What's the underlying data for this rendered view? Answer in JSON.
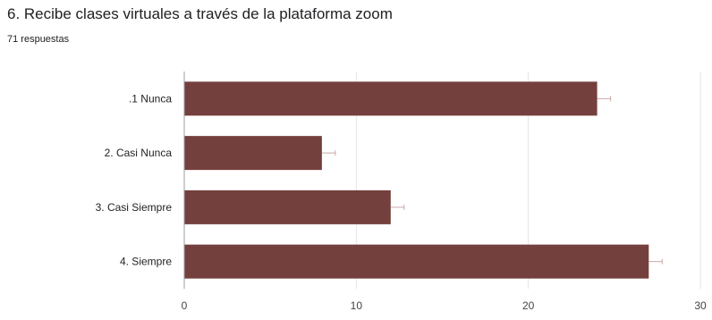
{
  "question": {
    "title": "6. Recibe clases virtuales a través de la plataforma zoom",
    "responses": "71 respuestas"
  },
  "colors": {
    "bar": "#74403d",
    "grid": "#e6e6e6",
    "axis": "#9e9e9e",
    "errorbar": "#c9a9a6"
  },
  "chart_data": {
    "type": "bar",
    "orientation": "horizontal",
    "title": "6. Recibe clases virtuales a través de la plataforma zoom",
    "subtitle": "71 respuestas",
    "categories": [
      ".1 Nunca",
      "2. Casi Nunca",
      "3. Casi Siempre",
      "4. Siempre"
    ],
    "values": [
      24,
      8,
      12,
      27
    ],
    "xlim": [
      0,
      30
    ],
    "xticks": [
      0,
      10,
      20,
      30
    ],
    "grid": true,
    "legend": "none"
  }
}
